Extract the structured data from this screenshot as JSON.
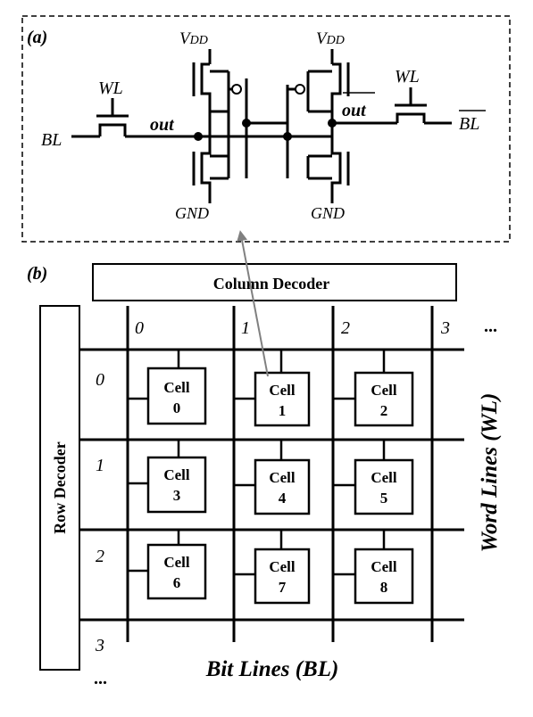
{
  "panel_a": {
    "label": "(a)",
    "vdd_left": "V",
    "vdd_left_sub": "DD",
    "vdd_right": "V",
    "vdd_right_sub": "DD",
    "wl_left": "WL",
    "wl_right": "WL",
    "bl_left": "BL",
    "bl_right": "BL",
    "out_left": "out",
    "out_right": "out",
    "gnd_left": "GND",
    "gnd_right": "GND"
  },
  "panel_b": {
    "label": "(b)",
    "column_decoder": "Column Decoder",
    "row_decoder": "Row Decoder",
    "bit_lines_title": "Bit Lines (BL)",
    "word_lines_title": "Word Lines (WL)",
    "column_indices": [
      "0",
      "1",
      "2",
      "3"
    ],
    "row_indices": [
      "0",
      "1",
      "2",
      "3"
    ],
    "column_more": "...",
    "row_more": "...",
    "cells": [
      {
        "line1": "Cell",
        "line2": "0"
      },
      {
        "line1": "Cell",
        "line2": "1"
      },
      {
        "line1": "Cell",
        "line2": "2"
      },
      {
        "line1": "Cell",
        "line2": "3"
      },
      {
        "line1": "Cell",
        "line2": "4"
      },
      {
        "line1": "Cell",
        "line2": "5"
      },
      {
        "line1": "Cell",
        "line2": "6"
      },
      {
        "line1": "Cell",
        "line2": "7"
      },
      {
        "line1": "Cell",
        "line2": "8"
      }
    ]
  },
  "colors": {
    "line": "#000000",
    "arrow": "#808080",
    "dashed_border": "#000000"
  }
}
